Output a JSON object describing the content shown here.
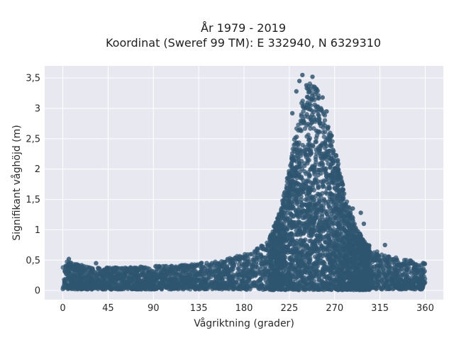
{
  "chart_data": {
    "type": "scatter",
    "title_line1": "År 1979 - 2019",
    "title_line2": "Koordinat (Sweref 99 TM): E 332940, N 6329310",
    "xlabel": "Vågriktning (grader)",
    "ylabel": "Signifikant våghöjd (m)",
    "xlim": [
      -18,
      378
    ],
    "ylim": [
      -0.15,
      3.7
    ],
    "x_ticks": [
      0,
      45,
      90,
      135,
      180,
      225,
      270,
      315,
      360
    ],
    "x_tick_labels": [
      "0",
      "45",
      "90",
      "135",
      "180",
      "225",
      "270",
      "315",
      "360"
    ],
    "y_ticks": [
      0,
      0.5,
      1,
      1.5,
      2,
      2.5,
      3,
      3.5
    ],
    "y_tick_labels": [
      "0",
      "0,5",
      "1",
      "1,5",
      "2",
      "2,5",
      "3",
      "3,5"
    ],
    "grid": true,
    "marker_color": "#2f5670",
    "background_color": "#e8e8f1",
    "envelope": {
      "x": [
        0,
        10,
        30,
        60,
        90,
        120,
        150,
        170,
        190,
        205,
        215,
        225,
        232,
        240,
        248,
        255,
        262,
        270,
        280,
        290,
        300,
        315,
        330,
        345,
        360
      ],
      "y_max": [
        0.5,
        0.45,
        0.38,
        0.38,
        0.4,
        0.42,
        0.48,
        0.55,
        0.65,
        0.85,
        1.3,
        2.0,
        2.7,
        3.3,
        3.55,
        3.2,
        2.8,
        2.4,
        1.6,
        1.1,
        0.8,
        0.62,
        0.55,
        0.5,
        0.45
      ],
      "y_min": [
        0.02,
        0.02,
        0.02,
        0.02,
        0.02,
        0.02,
        0.02,
        0.02,
        0.01,
        0.01,
        0.01,
        0.01,
        0.01,
        0.01,
        0.01,
        0.01,
        0.01,
        0.01,
        0.01,
        0.01,
        0.01,
        0.02,
        0.02,
        0.02,
        0.02
      ]
    },
    "outliers": [
      {
        "x": 238,
        "y": 3.55
      },
      {
        "x": 248,
        "y": 3.52
      },
      {
        "x": 235,
        "y": 3.45
      },
      {
        "x": 242,
        "y": 3.38
      },
      {
        "x": 252,
        "y": 3.32
      },
      {
        "x": 232,
        "y": 3.28
      },
      {
        "x": 258,
        "y": 3.18
      },
      {
        "x": 228,
        "y": 2.92
      },
      {
        "x": 262,
        "y": 2.95
      },
      {
        "x": 267,
        "y": 2.55
      },
      {
        "x": 273,
        "y": 2.05
      },
      {
        "x": 288,
        "y": 1.35
      },
      {
        "x": 296,
        "y": 1.28
      },
      {
        "x": 299,
        "y": 1.1
      },
      {
        "x": 320,
        "y": 0.75
      },
      {
        "x": 6,
        "y": 0.52
      },
      {
        "x": 33,
        "y": 0.45
      },
      {
        "x": 197,
        "y": 0.7
      }
    ]
  }
}
